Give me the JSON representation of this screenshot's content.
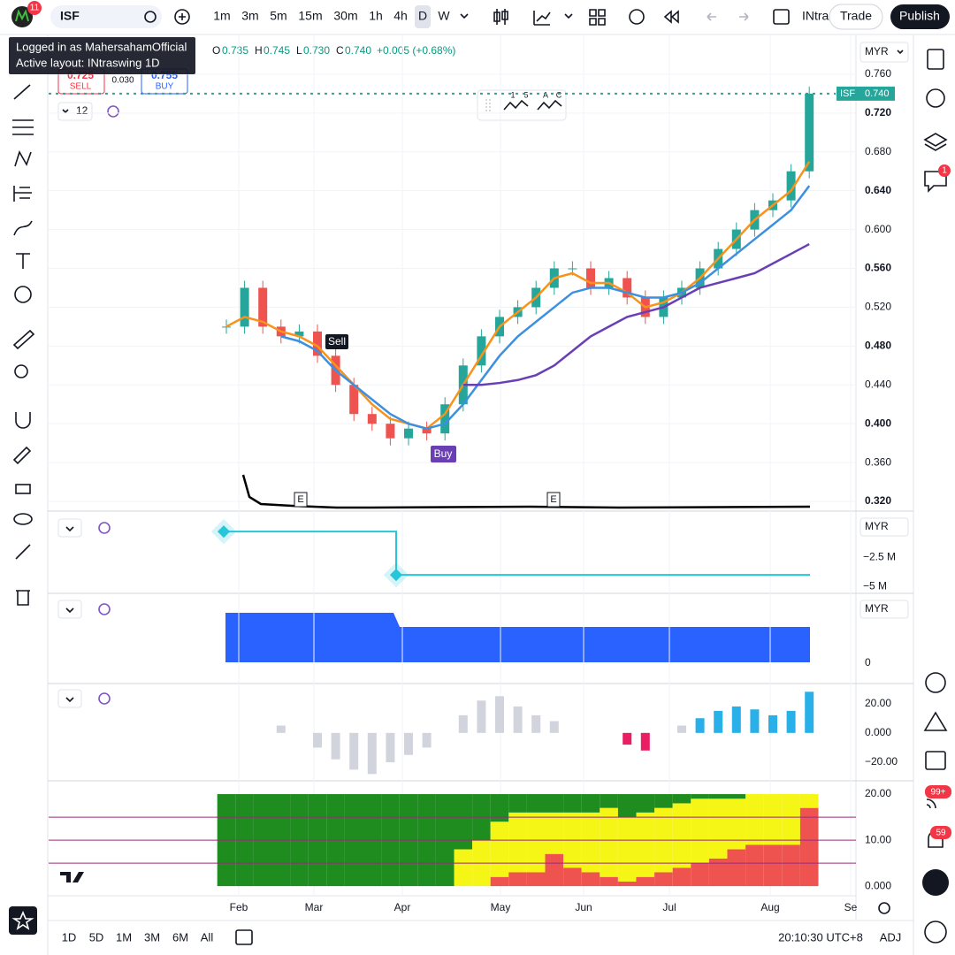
{
  "toolbar": {
    "badge": "11",
    "symbol": "ISF",
    "intervals": [
      "1m",
      "3m",
      "5m",
      "15m",
      "30m",
      "1h",
      "4h",
      "D",
      "W"
    ],
    "layout_name": "INtra",
    "trade": "Trade",
    "publish": "Publish"
  },
  "tooltip": {
    "user": "Logged in as MahersahamOfficial",
    "layout": "Active layout: INtraswing 1D"
  },
  "legend": {
    "o": "O",
    "open": "0.735",
    "h": "H",
    "high": "0.745",
    "l": "L",
    "low": "0.730",
    "c": "C",
    "close": "0.740",
    "change": "+0.005 (+0.68%)"
  },
  "trade_panel": {
    "sell_price": "0.725",
    "sell": "SELL",
    "spread": "0.030",
    "buy_price": "0.755",
    "buy": "BUY"
  },
  "interval_badge": "12",
  "currency": "MYR",
  "main": {
    "ylim": [
      0.31,
      0.8
    ],
    "yticks": [
      {
        "value": 0.76,
        "label": "0.760"
      },
      {
        "value": 0.72,
        "label": "0.720"
      },
      {
        "value": 0.68,
        "label": "0.680"
      },
      {
        "value": 0.64,
        "label": "0.640"
      },
      {
        "value": 0.6,
        "label": "0.600"
      },
      {
        "value": 0.56,
        "label": "0.560"
      },
      {
        "value": 0.52,
        "label": "0.520"
      },
      {
        "value": 0.48,
        "label": "0.480"
      },
      {
        "value": 0.44,
        "label": "0.440"
      },
      {
        "value": 0.4,
        "label": "0.400"
      },
      {
        "value": 0.36,
        "label": "0.360"
      },
      {
        "value": 0.32,
        "label": "0.320"
      }
    ],
    "price_label": {
      "symbol": "ISF",
      "value": "0.740"
    },
    "up_color": "#26a69a",
    "down_color": "#ef5350",
    "closes": [
      0.5,
      0.54,
      0.5,
      0.49,
      0.495,
      0.47,
      0.44,
      0.41,
      0.4,
      0.385,
      0.395,
      0.39,
      0.42,
      0.46,
      0.49,
      0.51,
      0.52,
      0.54,
      0.56,
      0.56,
      0.54,
      0.55,
      0.53,
      0.51,
      0.53,
      0.54,
      0.56,
      0.58,
      0.6,
      0.62,
      0.63,
      0.66,
      0.74
    ],
    "lines": [
      {
        "color": "#f7931a",
        "values": [
          0.5,
          0.51,
          0.505,
          0.495,
          0.49,
          0.48,
          0.46,
          0.44,
          0.42,
          0.405,
          0.4,
          0.395,
          0.41,
          0.44,
          0.47,
          0.5,
          0.515,
          0.53,
          0.55,
          0.555,
          0.545,
          0.545,
          0.535,
          0.52,
          0.525,
          0.535,
          0.55,
          0.57,
          0.59,
          0.61,
          0.625,
          0.64,
          0.67
        ]
      },
      {
        "color": "#3d8fe0",
        "values": [
          null,
          null,
          null,
          0.49,
          0.485,
          0.475,
          0.455,
          0.44,
          0.425,
          0.41,
          0.4,
          0.395,
          0.4,
          0.42,
          0.445,
          0.47,
          0.49,
          0.505,
          0.52,
          0.535,
          0.54,
          0.54,
          0.535,
          0.53,
          0.53,
          0.535,
          0.545,
          0.56,
          0.575,
          0.59,
          0.605,
          0.62,
          0.645
        ]
      },
      {
        "color": "#6a3fb5",
        "values": [
          null,
          null,
          null,
          null,
          null,
          null,
          null,
          null,
          null,
          null,
          null,
          null,
          null,
          0.44,
          0.44,
          0.442,
          0.445,
          0.45,
          0.46,
          0.475,
          0.49,
          0.5,
          0.51,
          0.515,
          0.52,
          0.53,
          0.54,
          0.545,
          0.55,
          0.555,
          0.565,
          0.575,
          0.585
        ]
      }
    ],
    "signals": {
      "sell": "Sell",
      "buy": "Buy"
    },
    "earnings": [
      "E",
      "E"
    ]
  },
  "pane2": {
    "currency": "MYR",
    "ylim": [
      -5500000,
      1300000
    ],
    "yticks": [
      {
        "value": -2500000,
        "label": "−2.5 M"
      },
      {
        "value": -5000000,
        "label": "−5 M"
      }
    ],
    "color": "#26c6da",
    "values": [
      -300000,
      -4000000
    ]
  },
  "pane3": {
    "currency": "MYR",
    "zero": "0"
  },
  "pane4": {
    "ylim": [
      -32,
      33
    ],
    "yticks": [
      {
        "value": 20,
        "label": "20.00"
      },
      {
        "value": 0,
        "label": "0.000"
      },
      {
        "value": -20,
        "label": "−20.00"
      }
    ],
    "values": [
      0,
      0,
      0,
      5,
      0,
      -10,
      -18,
      -25,
      -28,
      -20,
      -15,
      -10,
      0,
      12,
      22,
      25,
      18,
      12,
      8,
      0,
      0,
      0,
      -8,
      -12,
      0,
      5,
      10,
      15,
      18,
      16,
      12,
      15,
      28
    ],
    "colors": [
      "#d1d4dc",
      "#d1d4dc",
      "#d1d4dc",
      "#d1d4dc",
      "#d1d4dc",
      "#d1d4dc",
      "#d1d4dc",
      "#d1d4dc",
      "#d1d4dc",
      "#d1d4dc",
      "#d1d4dc",
      "#d1d4dc",
      "#d1d4dc",
      "#d1d4dc",
      "#d1d4dc",
      "#d1d4dc",
      "#d1d4dc",
      "#d1d4dc",
      "#d1d4dc",
      "#2ab0e8",
      "#2ab0e8",
      "#2ab0e8",
      "#e91e63",
      "#e91e63",
      "#d1d4dc",
      "#d1d4dc",
      "#2ab0e8",
      "#2ab0e8",
      "#2ab0e8",
      "#2ab0e8",
      "#2ab0e8",
      "#2ab0e8",
      "#2ab0e8"
    ]
  },
  "pane5": {
    "ylim": [
      -1.9,
      22.7
    ],
    "yticks": [
      {
        "value": 20,
        "label": "20.00"
      },
      {
        "value": 10,
        "label": "10.00"
      },
      {
        "value": 0,
        "label": "0.000"
      }
    ],
    "levels": [
      15,
      10,
      5
    ],
    "level_color": "#9c2a7a",
    "series": [
      {
        "color": "#ef5350",
        "values": [
          0,
          0,
          0,
          0,
          0,
          0,
          0,
          0,
          0,
          0,
          0,
          0,
          0,
          0,
          0,
          2,
          3,
          3,
          7,
          4,
          3,
          2,
          1,
          2,
          3,
          4,
          5,
          6,
          8,
          9,
          9,
          9,
          17
        ]
      },
      {
        "color": "#f5f516",
        "values": [
          0,
          0,
          0,
          0,
          0,
          0,
          0,
          0,
          0,
          0,
          0,
          0,
          0,
          8,
          10,
          12,
          13,
          13,
          9,
          12,
          13,
          15,
          14,
          14,
          14,
          14,
          14,
          13,
          11,
          11,
          11,
          11,
          3
        ]
      },
      {
        "color": "#1e8c1e",
        "values": [
          20,
          20,
          20,
          20,
          20,
          20,
          20,
          20,
          20,
          20,
          20,
          20,
          20,
          12,
          10,
          6,
          4,
          4,
          4,
          4,
          4,
          3,
          5,
          4,
          3,
          2,
          1,
          1,
          1,
          0,
          0,
          0,
          0
        ]
      }
    ]
  },
  "time_axis": [
    "Feb",
    "Mar",
    "Apr",
    "May",
    "Jun",
    "Jul",
    "Aug",
    "Se"
  ],
  "ranges": [
    "1D",
    "5D",
    "1M",
    "3M",
    "6M",
    "All"
  ],
  "clock": "20:10:30 UTC+8",
  "adj": "ADJ",
  "badges": {
    "chat": "1",
    "feed": "99+",
    "alerts": "59"
  },
  "patterns": {
    "a": "1",
    "b": "5",
    "c": "A",
    "d": "C"
  }
}
